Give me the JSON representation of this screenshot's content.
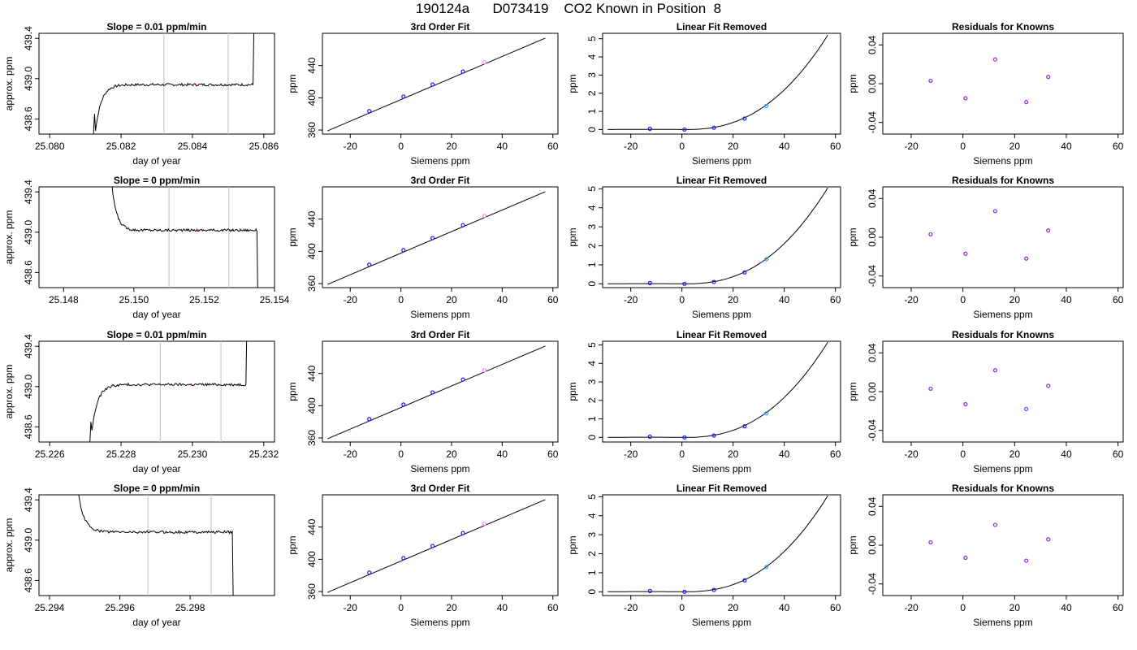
{
  "page_title": "190124a      D073419    CO2 Known in Position  8",
  "panel_titles": {
    "linear_fit": "3rd Order Fit",
    "linear_removed": "Linear Fit Removed",
    "residuals": "Residuals for Knowns"
  },
  "axis_labels": {
    "trace_x": "day of year",
    "trace_y": "approx. ppm",
    "fit_x": "Siemens ppm",
    "fit_y": "ppm"
  },
  "colors": {
    "line": "#000000",
    "window_lines": "#c8c8c8",
    "point_blue": "#1a1aff",
    "point_light": "#3aa0ff",
    "point_purple": "#8a2be2",
    "point_pink": "#ff80ff",
    "point_red": "#ff0000"
  },
  "chart_data": [
    {
      "type": "line",
      "title": "Slope =  0.01  ppm/min",
      "xlabel": "day of year",
      "ylabel": "approx. ppm",
      "xlim": [
        25.0797,
        25.0863
      ],
      "ylim": [
        438.45,
        439.45
      ],
      "xticks": [
        25.08,
        25.082,
        25.084,
        25.086
      ],
      "xtick_labels": [
        "25.080",
        "25.082",
        "25.084",
        "25.086"
      ],
      "yticks": [
        438.6,
        439.0,
        439.4
      ],
      "ytick_labels": [
        "438.6",
        "439.0",
        "439.4"
      ],
      "window": [
        25.0832,
        25.085
      ],
      "start": 25.0812,
      "end": 25.0857,
      "shape": "rise",
      "plateau": 438.94
    },
    {
      "type": "scatter",
      "title": "3rd Order Fit",
      "xlabel": "Siemens ppm",
      "ylabel": "ppm",
      "xlim": [
        -31,
        62
      ],
      "ylim": [
        355,
        480
      ],
      "xticks": [
        -20,
        0,
        20,
        40,
        60
      ],
      "yticks": [
        360,
        400,
        440
      ],
      "line": [
        [
          -29,
          359
        ],
        [
          57,
          474
        ]
      ],
      "points": [
        [
          -12.5,
          383.5
        ],
        [
          1,
          401.5
        ],
        [
          12.5,
          416.5
        ],
        [
          24.5,
          432.5
        ],
        [
          33,
          444
        ]
      ]
    },
    {
      "type": "scatter",
      "title": "Linear Fit Removed",
      "xlabel": "Siemens ppm",
      "ylabel": "ppm",
      "xlim": [
        -31,
        62
      ],
      "ylim": [
        -0.25,
        5.3
      ],
      "xticks": [
        -20,
        0,
        20,
        40,
        60
      ],
      "yticks": [
        0,
        1,
        2,
        3,
        4,
        5
      ],
      "curve_end": 5.2,
      "points": [
        [
          -12.5,
          0.04
        ],
        [
          1,
          0.0
        ],
        [
          12.5,
          0.1
        ],
        [
          24.5,
          0.6
        ],
        [
          33,
          1.3
        ]
      ]
    },
    {
      "type": "scatter",
      "title": "Residuals for Knowns",
      "xlabel": "Siemens ppm",
      "ylabel": "ppm",
      "xlim": [
        -31,
        62
      ],
      "ylim": [
        -0.052,
        0.052
      ],
      "xticks": [
        -20,
        0,
        20,
        40,
        60
      ],
      "yticks": [
        -0.04,
        0.0,
        0.04
      ],
      "ytick_labels": [
        "-0.04",
        "0.00",
        "0.04"
      ],
      "points": [
        [
          -12.5,
          0.003
        ],
        [
          1,
          -0.015
        ],
        [
          12.5,
          0.025
        ],
        [
          24.5,
          -0.019
        ],
        [
          33,
          0.007
        ]
      ]
    },
    {
      "type": "line",
      "title": "Slope =  0  ppm/min",
      "xlabel": "day of year",
      "ylabel": "approx. ppm",
      "xlim": [
        25.1473,
        25.154
      ],
      "ylim": [
        438.45,
        439.45
      ],
      "xticks": [
        25.148,
        25.15,
        25.152,
        25.154
      ],
      "xtick_labels": [
        "25.148",
        "25.150",
        "25.152",
        "25.154"
      ],
      "yticks": [
        438.6,
        439.0,
        439.4
      ],
      "ytick_labels": [
        "438.6",
        "439.0",
        "439.4"
      ],
      "window": [
        25.151,
        25.1527
      ],
      "start": 25.1493,
      "end": 25.1535,
      "shape": "fall",
      "plateau": 439.02
    },
    {
      "type": "scatter",
      "title": "3rd Order Fit",
      "xlabel": "Siemens ppm",
      "ylabel": "ppm",
      "xlim": [
        -31,
        62
      ],
      "ylim": [
        355,
        480
      ],
      "xticks": [
        -20,
        0,
        20,
        40,
        60
      ],
      "yticks": [
        360,
        400,
        440
      ],
      "line": [
        [
          -29,
          359
        ],
        [
          57,
          474
        ]
      ],
      "points": [
        [
          -12.5,
          383.5
        ],
        [
          1,
          401.5
        ],
        [
          12.5,
          416.5
        ],
        [
          24.5,
          432.5
        ],
        [
          33,
          444
        ]
      ]
    },
    {
      "type": "scatter",
      "title": "Linear Fit Removed",
      "xlabel": "Siemens ppm",
      "ylabel": "ppm",
      "xlim": [
        -31,
        62
      ],
      "ylim": [
        -0.2,
        5.1
      ],
      "xticks": [
        -20,
        0,
        20,
        40,
        60
      ],
      "yticks": [
        0,
        1,
        2,
        3,
        4,
        5
      ],
      "curve_end": 5.05,
      "points": [
        [
          -12.5,
          0.04
        ],
        [
          1,
          0.0
        ],
        [
          12.5,
          0.1
        ],
        [
          24.5,
          0.6
        ],
        [
          33,
          1.3
        ]
      ]
    },
    {
      "type": "scatter",
      "title": "Residuals for Knowns",
      "xlabel": "Siemens ppm",
      "ylabel": "ppm",
      "xlim": [
        -31,
        62
      ],
      "ylim": [
        -0.052,
        0.052
      ],
      "xticks": [
        -20,
        0,
        20,
        40,
        60
      ],
      "yticks": [
        -0.04,
        0.0,
        0.04
      ],
      "ytick_labels": [
        "-0.04",
        "0.00",
        "0.04"
      ],
      "points": [
        [
          -12.5,
          0.003
        ],
        [
          1,
          -0.017
        ],
        [
          12.5,
          0.027
        ],
        [
          24.5,
          -0.022
        ],
        [
          33,
          0.007
        ]
      ]
    },
    {
      "type": "line",
      "title": "Slope =  0.01  ppm/min",
      "xlabel": "day of year",
      "ylabel": "approx. ppm",
      "xlim": [
        25.2257,
        25.2323
      ],
      "ylim": [
        438.45,
        439.45
      ],
      "xticks": [
        25.226,
        25.228,
        25.23,
        25.232
      ],
      "xtick_labels": [
        "25.226",
        "25.228",
        "25.230",
        "25.232"
      ],
      "yticks": [
        438.6,
        439.0,
        439.4
      ],
      "ytick_labels": [
        "438.6",
        "439.0",
        "439.4"
      ],
      "window": [
        25.2291,
        25.2308
      ],
      "start": 25.2271,
      "end": 25.2315,
      "shape": "rise",
      "plateau": 439.02
    },
    {
      "type": "scatter",
      "title": "3rd Order Fit",
      "xlabel": "Siemens ppm",
      "ylabel": "ppm",
      "xlim": [
        -31,
        62
      ],
      "ylim": [
        355,
        480
      ],
      "xticks": [
        -20,
        0,
        20,
        40,
        60
      ],
      "yticks": [
        360,
        400,
        440
      ],
      "line": [
        [
          -29,
          359
        ],
        [
          57,
          474
        ]
      ],
      "points": [
        [
          -12.5,
          383.5
        ],
        [
          1,
          401.5
        ],
        [
          12.5,
          416.5
        ],
        [
          24.5,
          432.5
        ],
        [
          33,
          444
        ]
      ]
    },
    {
      "type": "scatter",
      "title": "Linear Fit Removed",
      "xlabel": "Siemens ppm",
      "ylabel": "ppm",
      "xlim": [
        -31,
        62
      ],
      "ylim": [
        -0.25,
        5.2
      ],
      "xticks": [
        -20,
        0,
        20,
        40,
        60
      ],
      "yticks": [
        0,
        1,
        2,
        3,
        4,
        5
      ],
      "curve_end": 5.15,
      "points": [
        [
          -12.5,
          0.04
        ],
        [
          1,
          0.0
        ],
        [
          12.5,
          0.1
        ],
        [
          24.5,
          0.6
        ],
        [
          33,
          1.3
        ]
      ]
    },
    {
      "type": "scatter",
      "title": "Residuals for Knowns",
      "xlabel": "Siemens ppm",
      "ylabel": "ppm",
      "xlim": [
        -31,
        62
      ],
      "ylim": [
        -0.052,
        0.052
      ],
      "xticks": [
        -20,
        0,
        20,
        40,
        60
      ],
      "yticks": [
        -0.04,
        0.0,
        0.04
      ],
      "ytick_labels": [
        "-0.04",
        "0.00",
        "0.04"
      ],
      "points": [
        [
          -12.5,
          0.003
        ],
        [
          1,
          -0.013
        ],
        [
          12.5,
          0.022
        ],
        [
          24.5,
          -0.018
        ],
        [
          33,
          0.006
        ]
      ]
    },
    {
      "type": "line",
      "title": "Slope =  0  ppm/min",
      "xlabel": "day of year",
      "ylabel": "approx. ppm",
      "xlim": [
        25.2937,
        25.3004
      ],
      "ylim": [
        438.45,
        439.45
      ],
      "xticks": [
        25.294,
        25.296,
        25.298
      ],
      "xtick_labels": [
        "25.294",
        "25.296",
        "25.298"
      ],
      "yticks": [
        438.6,
        439.0,
        439.4
      ],
      "ytick_labels": [
        "438.6",
        "439.0",
        "439.4"
      ],
      "window": [
        25.2968,
        25.2986
      ],
      "start": 25.2947,
      "end": 25.2992,
      "shape": "fall",
      "plateau": 439.08
    },
    {
      "type": "scatter",
      "title": "3rd Order Fit",
      "xlabel": "Siemens ppm",
      "ylabel": "ppm",
      "xlim": [
        -31,
        62
      ],
      "ylim": [
        355,
        480
      ],
      "xticks": [
        -20,
        0,
        20,
        40,
        60
      ],
      "yticks": [
        360,
        400,
        440
      ],
      "line": [
        [
          -29,
          359
        ],
        [
          57,
          474
        ]
      ],
      "points": [
        [
          -12.5,
          383.5
        ],
        [
          1,
          401.5
        ],
        [
          12.5,
          416.5
        ],
        [
          24.5,
          432.5
        ],
        [
          33,
          444
        ]
      ]
    },
    {
      "type": "scatter",
      "title": "Linear Fit Removed",
      "xlabel": "Siemens ppm",
      "ylabel": "ppm",
      "xlim": [
        -31,
        62
      ],
      "ylim": [
        -0.2,
        5.1
      ],
      "xticks": [
        -20,
        0,
        20,
        40,
        60
      ],
      "yticks": [
        0,
        1,
        2,
        3,
        4,
        5
      ],
      "curve_end": 5.05,
      "points": [
        [
          -12.5,
          0.04
        ],
        [
          1,
          0.0
        ],
        [
          12.5,
          0.1
        ],
        [
          24.5,
          0.6
        ],
        [
          33,
          1.3
        ]
      ]
    },
    {
      "type": "scatter",
      "title": "Residuals for Knowns",
      "xlabel": "Siemens ppm",
      "ylabel": "ppm",
      "xlim": [
        -31,
        62
      ],
      "ylim": [
        -0.052,
        0.052
      ],
      "xticks": [
        -20,
        0,
        20,
        40,
        60
      ],
      "yticks": [
        -0.04,
        0.0,
        0.04
      ],
      "ytick_labels": [
        "-0.04",
        "0.00",
        "0.04"
      ],
      "points": [
        [
          -12.5,
          0.003
        ],
        [
          1,
          -0.013
        ],
        [
          12.5,
          0.021
        ],
        [
          24.5,
          -0.016
        ],
        [
          33,
          0.006
        ]
      ]
    }
  ]
}
